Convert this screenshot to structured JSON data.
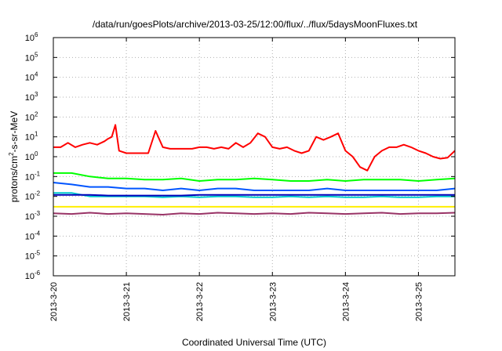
{
  "chart_data": {
    "type": "line",
    "title": "/data/run/goesPlots/archive/2013-03-25/12:00/flux/../flux/5daysMoonFluxes.txt",
    "xlabel": "Coordinated Universal Time (UTC)",
    "ylabel": {
      "prefix": "protons/cm",
      "sup": "2",
      "suffix": "-s-sr-MeV"
    },
    "xlim_days": [
      0,
      5.5
    ],
    "x_ticks": [
      {
        "day": 0,
        "label": "2013-3-20"
      },
      {
        "day": 1,
        "label": "2013-3-21"
      },
      {
        "day": 2,
        "label": "2013-3-22"
      },
      {
        "day": 3,
        "label": "2013-3-23"
      },
      {
        "day": 4,
        "label": "2013-3-24"
      },
      {
        "day": 5,
        "label": "2013-3-25"
      }
    ],
    "y_scale": "log",
    "ylim": [
      1e-06,
      1000000.0
    ],
    "y_ticks": [
      {
        "exp": 6,
        "label": "6"
      },
      {
        "exp": 5,
        "label": "5"
      },
      {
        "exp": 4,
        "label": "4"
      },
      {
        "exp": 3,
        "label": "3"
      },
      {
        "exp": 2,
        "label": "2"
      },
      {
        "exp": 1,
        "label": "1"
      },
      {
        "exp": 0,
        "label": "0"
      },
      {
        "exp": -1,
        "label": "-1"
      },
      {
        "exp": -2,
        "label": "-2"
      },
      {
        "exp": -3,
        "label": "-3"
      },
      {
        "exp": -4,
        "label": "-4"
      },
      {
        "exp": -5,
        "label": "-5"
      },
      {
        "exp": -6,
        "label": "-6"
      }
    ],
    "y_tick_base": "10",
    "grid": true,
    "series": [
      {
        "color": "#ff0000",
        "x": [
          0.0,
          0.1,
          0.2,
          0.3,
          0.4,
          0.5,
          0.6,
          0.7,
          0.75,
          0.8,
          0.85,
          0.9,
          1.0,
          1.1,
          1.2,
          1.3,
          1.4,
          1.5,
          1.6,
          1.7,
          1.8,
          1.9,
          2.0,
          2.1,
          2.2,
          2.3,
          2.4,
          2.5,
          2.6,
          2.7,
          2.8,
          2.9,
          3.0,
          3.1,
          3.2,
          3.3,
          3.4,
          3.5,
          3.6,
          3.7,
          3.8,
          3.9,
          4.0,
          4.1,
          4.2,
          4.3,
          4.4,
          4.5,
          4.6,
          4.7,
          4.8,
          4.9,
          5.0,
          5.1,
          5.2,
          5.3,
          5.4,
          5.5
        ],
        "values": [
          3,
          3,
          5,
          3,
          4,
          5,
          4,
          6,
          8,
          10,
          40,
          2,
          1.5,
          1.5,
          1.5,
          1.5,
          20,
          3,
          2.5,
          2.5,
          2.5,
          2.5,
          3,
          3,
          2.5,
          3,
          2.5,
          5,
          3,
          5,
          15,
          10,
          3,
          2.5,
          3,
          2,
          1.5,
          2,
          10,
          7,
          10,
          15,
          2,
          1,
          0.3,
          0.2,
          1,
          2,
          3,
          3,
          4,
          3,
          2,
          1.5,
          1,
          0.8,
          0.9,
          2
        ]
      },
      {
        "color": "#00ff00",
        "x": [
          0.0,
          0.25,
          0.5,
          0.75,
          1.0,
          1.25,
          1.5,
          1.75,
          2.0,
          2.25,
          2.5,
          2.75,
          3.0,
          3.25,
          3.5,
          3.75,
          4.0,
          4.25,
          4.5,
          4.75,
          5.0,
          5.25,
          5.5
        ],
        "values": [
          0.15,
          0.15,
          0.1,
          0.08,
          0.08,
          0.07,
          0.07,
          0.08,
          0.06,
          0.07,
          0.07,
          0.08,
          0.07,
          0.06,
          0.06,
          0.07,
          0.06,
          0.07,
          0.07,
          0.07,
          0.06,
          0.07,
          0.08
        ]
      },
      {
        "color": "#0055ff",
        "x": [
          0.0,
          0.25,
          0.5,
          0.75,
          1.0,
          1.25,
          1.5,
          1.75,
          2.0,
          2.25,
          2.5,
          2.75,
          3.0,
          3.25,
          3.5,
          3.75,
          4.0,
          4.25,
          4.5,
          4.75,
          5.0,
          5.25,
          5.5
        ],
        "values": [
          0.05,
          0.04,
          0.03,
          0.03,
          0.025,
          0.025,
          0.02,
          0.025,
          0.02,
          0.025,
          0.025,
          0.02,
          0.02,
          0.02,
          0.02,
          0.025,
          0.02,
          0.02,
          0.02,
          0.02,
          0.02,
          0.02,
          0.025
        ]
      },
      {
        "color": "#00cccc",
        "x": [
          0.0,
          0.25,
          0.5,
          0.75,
          1.0,
          1.25,
          1.5,
          1.75,
          2.0,
          2.25,
          2.5,
          2.75,
          3.0,
          3.25,
          3.5,
          3.75,
          4.0,
          4.25,
          4.5,
          4.75,
          5.0,
          5.25,
          5.5
        ],
        "values": [
          0.015,
          0.015,
          0.01,
          0.01,
          0.01,
          0.01,
          0.009,
          0.01,
          0.009,
          0.01,
          0.01,
          0.009,
          0.009,
          0.01,
          0.009,
          0.01,
          0.009,
          0.009,
          0.01,
          0.009,
          0.009,
          0.01,
          0.01
        ]
      },
      {
        "color": "#0000bb",
        "x": [
          0.0,
          0.25,
          0.5,
          0.75,
          1.0,
          1.25,
          1.5,
          1.75,
          2.0,
          2.25,
          2.5,
          2.75,
          3.0,
          3.25,
          3.5,
          3.75,
          4.0,
          4.25,
          4.5,
          4.75,
          5.0,
          5.25,
          5.5
        ],
        "values": [
          0.012,
          0.012,
          0.012,
          0.011,
          0.011,
          0.011,
          0.011,
          0.011,
          0.012,
          0.012,
          0.012,
          0.012,
          0.012,
          0.012,
          0.012,
          0.012,
          0.012,
          0.012,
          0.012,
          0.012,
          0.012,
          0.012,
          0.012
        ]
      },
      {
        "color": "#ffee00",
        "x": [
          0.0,
          0.25,
          0.5,
          0.75,
          1.0,
          1.25,
          1.5,
          1.75,
          2.0,
          2.25,
          2.5,
          2.75,
          3.0,
          3.25,
          3.5,
          3.75,
          4.0,
          4.25,
          4.5,
          4.75,
          5.0,
          5.25,
          5.5
        ],
        "values": [
          0.003,
          0.003,
          0.003,
          0.003,
          0.003,
          0.003,
          0.003,
          0.003,
          0.003,
          0.003,
          0.003,
          0.003,
          0.003,
          0.003,
          0.003,
          0.003,
          0.003,
          0.003,
          0.003,
          0.003,
          0.003,
          0.003,
          0.003
        ]
      },
      {
        "color": "#993366",
        "x": [
          0.0,
          0.25,
          0.5,
          0.75,
          1.0,
          1.25,
          1.5,
          1.75,
          2.0,
          2.25,
          2.5,
          2.75,
          3.0,
          3.25,
          3.5,
          3.75,
          4.0,
          4.25,
          4.5,
          4.75,
          5.0,
          5.25,
          5.5
        ],
        "values": [
          0.0014,
          0.0013,
          0.0015,
          0.0013,
          0.0014,
          0.0013,
          0.0012,
          0.0014,
          0.0013,
          0.0015,
          0.0014,
          0.0013,
          0.0014,
          0.0013,
          0.0015,
          0.0014,
          0.0013,
          0.0014,
          0.0015,
          0.0013,
          0.0014,
          0.0014,
          0.0015
        ]
      }
    ]
  }
}
